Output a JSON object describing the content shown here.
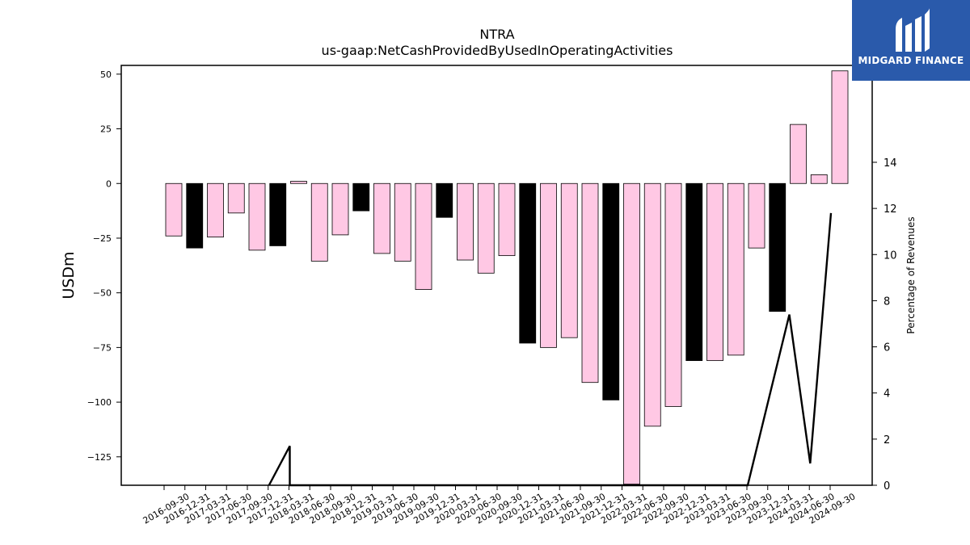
{
  "brand": {
    "name": "MIDGARD FINANCE",
    "color": "#2a5aab"
  },
  "colors": {
    "bar_pink": "#ffc8e4",
    "bar_black": "#000000",
    "line": "#000000"
  },
  "chart_data": {
    "type": "bar",
    "title": "NTRA",
    "subtitle": "us-gaap:NetCashProvidedByUsedInOperatingActivities",
    "ylabel": "USDm",
    "y2label": "Percentage of Revenues",
    "ylim": [
      -138,
      54
    ],
    "y2lim": [
      0,
      18.2
    ],
    "yticks": [
      50,
      25,
      0,
      -25,
      -50,
      -75,
      -100,
      -125
    ],
    "y2ticks": [
      0,
      2,
      4,
      6,
      8,
      10,
      12,
      14
    ],
    "grid": false,
    "categories": [
      "2016-09-30",
      "2016-12-31",
      "2017-03-31",
      "2017-06-30",
      "2017-09-30",
      "2017-12-31",
      "2018-03-31",
      "2018-06-30",
      "2018-09-30",
      "2018-12-31",
      "2019-03-31",
      "2019-06-30",
      "2019-09-30",
      "2019-12-31",
      "2020-03-31",
      "2020-06-30",
      "2020-09-30",
      "2020-12-31",
      "2021-03-31",
      "2021-06-30",
      "2021-09-30",
      "2021-12-31",
      "2022-03-31",
      "2022-06-30",
      "2022-09-30",
      "2022-12-31",
      "2023-03-31",
      "2023-06-30",
      "2023-09-30",
      "2023-12-31",
      "2024-03-31",
      "2024-06-30",
      "2024-09-30"
    ],
    "values": [
      -24,
      -29.5,
      -24.5,
      -13.5,
      -30.5,
      -28.5,
      1,
      -35.5,
      -23.5,
      -12.5,
      -32,
      -35.5,
      -48.5,
      -15.5,
      -35,
      -41,
      -33,
      -73,
      -75,
      -70.5,
      -91,
      -99,
      -137.5,
      -111,
      -102,
      -81,
      -81,
      -78.5,
      -29.5,
      -58.5,
      27,
      4,
      51.5
    ],
    "highlight": [
      false,
      true,
      false,
      false,
      false,
      true,
      false,
      false,
      false,
      true,
      false,
      false,
      false,
      true,
      false,
      false,
      false,
      true,
      false,
      false,
      false,
      true,
      false,
      false,
      false,
      true,
      false,
      false,
      false,
      true,
      false,
      false,
      false
    ],
    "line_series": {
      "name": "Percentage of Revenues",
      "points": [
        {
          "category": "2017-12-31",
          "value": 0
        },
        {
          "category": "2018-03-31",
          "value": 1.7
        },
        {
          "category": "2018-03-31",
          "value": 0
        },
        {
          "category": "2023-09-30",
          "value": 0
        },
        {
          "category": "2024-03-31",
          "value": 7.4
        },
        {
          "category": "2024-06-30",
          "value": 0.95
        },
        {
          "category": "2024-09-30",
          "value": 11.8
        }
      ]
    }
  }
}
